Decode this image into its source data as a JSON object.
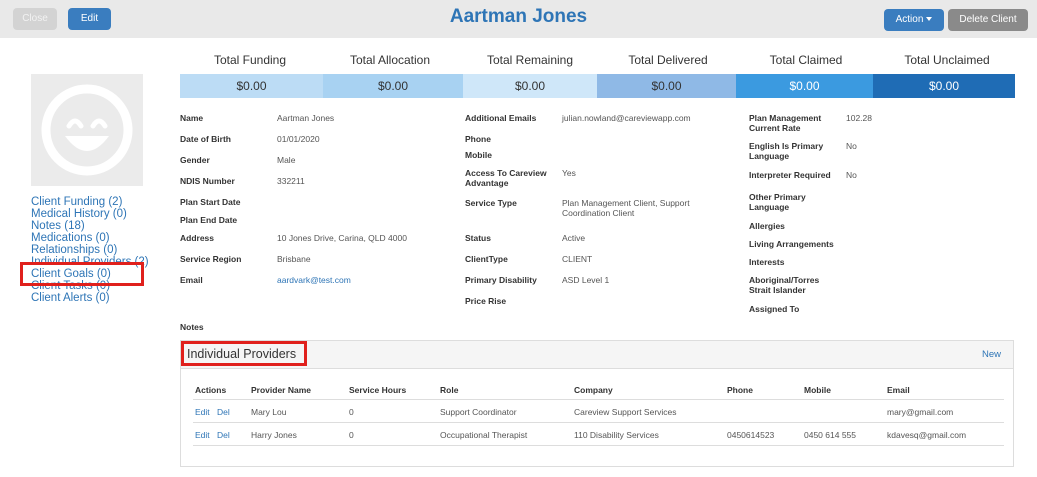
{
  "toolbar": {
    "close_label": "Close",
    "edit_label": "Edit",
    "action_label": "Action",
    "delete_label": "Delete Client"
  },
  "page": {
    "title": "Aartman Jones"
  },
  "financials": [
    {
      "label": "Total Funding",
      "value": "$0.00",
      "bg": "#bcdcf5",
      "fg": "#333333"
    },
    {
      "label": "Total Allocation",
      "value": "$0.00",
      "bg": "#a8d2f2",
      "fg": "#333333"
    },
    {
      "label": "Total Remaining",
      "value": "$0.00",
      "bg": "#cfe7f9",
      "fg": "#333333"
    },
    {
      "label": "Total Delivered",
      "value": "$0.00",
      "bg": "#8fb9e6",
      "fg": "#333333"
    },
    {
      "label": "Total Claimed",
      "value": "$0.00",
      "bg": "#3b9ae0",
      "fg": "#ffffff"
    },
    {
      "label": "Total Unclaimed",
      "value": "$0.00",
      "bg": "#1f6cb5",
      "fg": "#ffffff"
    }
  ],
  "sidebar": {
    "items": [
      {
        "label": "Client Funding (2)"
      },
      {
        "label": "Medical History (0)"
      },
      {
        "label": "Notes (18)"
      },
      {
        "label": "Medications (0)"
      },
      {
        "label": "Relationships (0)"
      },
      {
        "label": "Individual Providers (2)"
      },
      {
        "label": "Client Goals (0)"
      },
      {
        "label": "Client Tasks (0)"
      },
      {
        "label": "Client Alerts (0)"
      }
    ]
  },
  "details": {
    "col1": [
      {
        "label": "Name",
        "value": "Aartman Jones"
      },
      {
        "label": "Date of Birth",
        "value": "01/01/2020"
      },
      {
        "label": "Gender",
        "value": "Male"
      },
      {
        "label": "NDIS Number",
        "value": "332211"
      },
      {
        "label": "Plan Start Date",
        "value": ""
      },
      {
        "label": "Plan End Date",
        "value": ""
      },
      {
        "label": "Address",
        "value": "10 Jones Drive, Carina, QLD 4000"
      },
      {
        "label": "Service Region",
        "value": "Brisbane"
      },
      {
        "label": "Email",
        "value": "aardvark@test.com"
      }
    ],
    "col2": [
      {
        "label": "Additional Emails",
        "value": "julian.nowland@careviewapp.com"
      },
      {
        "label": "Phone",
        "value": ""
      },
      {
        "label": "Mobile",
        "value": ""
      },
      {
        "label_l1": "Access To Careview",
        "label_l2": "Advantage",
        "value": "Yes"
      },
      {
        "label": "Service Type",
        "value_l1": "Plan Management Client, Support",
        "value_l2": "Coordination Client"
      },
      {
        "label": "Status",
        "value": "Active"
      },
      {
        "label": "ClientType",
        "value": "CLIENT"
      },
      {
        "label": "Primary Disability",
        "value": "ASD Level 1"
      },
      {
        "label": "Price Rise",
        "value": ""
      }
    ],
    "col3": [
      {
        "label_l1": "Plan Management",
        "label_l2": "Current Rate",
        "value": "102.28"
      },
      {
        "label_l1": "English Is Primary",
        "label_l2": "Language",
        "value": "No"
      },
      {
        "label": "Interpreter Required",
        "value": "No"
      },
      {
        "label_l1": "Other Primary",
        "label_l2": "Language",
        "value": ""
      },
      {
        "label": "Allergies",
        "value": ""
      },
      {
        "label": "Living Arrangements",
        "value": ""
      },
      {
        "label": "Interests",
        "value": ""
      },
      {
        "label_l1": "Aboriginal/Torres",
        "label_l2": "Strait Islander",
        "value": ""
      },
      {
        "label": "Assigned To",
        "value": ""
      }
    ],
    "notes_label": "Notes"
  },
  "providers": {
    "title": "Individual Providers",
    "new_label": "New",
    "columns": [
      "Actions",
      "Provider Name",
      "Service Hours",
      "Role",
      "Company",
      "Phone",
      "Mobile",
      "Email"
    ],
    "rows": [
      {
        "edit": "Edit",
        "del": "Del",
        "name": "Mary Lou",
        "hours": "0",
        "role": "Support Coordinator",
        "company": "Careview Support Services",
        "phone": "",
        "mobile": "",
        "email": "mary@gmail.com"
      },
      {
        "edit": "Edit",
        "del": "Del",
        "name": "Harry Jones",
        "hours": "0",
        "role": "Occupational Therapist",
        "company": "110 Disability Services",
        "phone": "0450614523",
        "mobile": "0450 614 555",
        "email": "kdavesq@gmail.com"
      }
    ]
  },
  "colors": {
    "accent": "#2e75b6",
    "highlight": "#e0201c",
    "topbar": "#e9e9e9"
  }
}
